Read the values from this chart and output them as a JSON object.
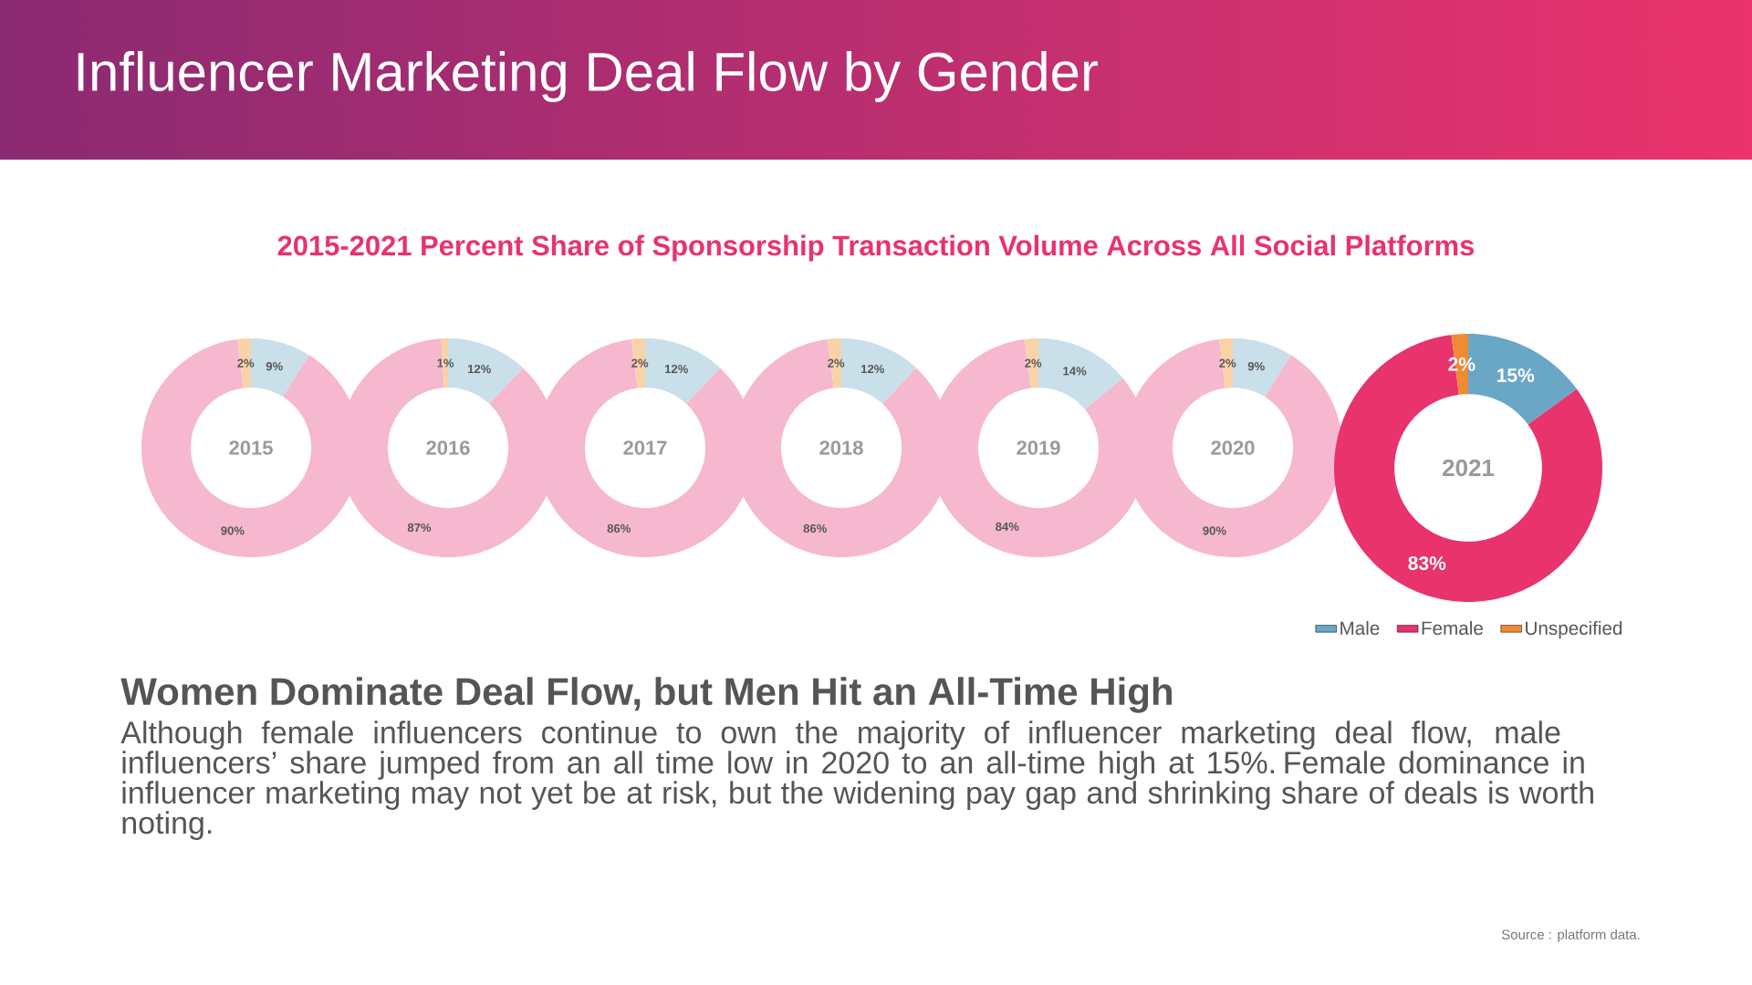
{
  "chart_data": [
    {
      "type": "other",
      "title": "Influencer Marketing Deal Flow by Gender",
      "subtitle": "2015-2021 Percent Share of Sponsorship Transaction Volume Across All Social Platforms",
      "annotations": [
        "Women Dominate Deal Flow, but Men Hit an All-Time High",
        "Although female influencers continue to own the majority of influencer marketing deal flow, male influencers’ share jumped from an all time low in 2020 to an all-time high at 15%. Female dominance in influencer marketing may not yet be at risk, but the widening pay gap and shrinking share of deals is worth noting.",
        "Source : platform data."
      ]
    },
    {
      "type": "donut",
      "title": "2015",
      "values": [
        9,
        90,
        2
      ],
      "value_labels": [
        "9%",
        "90%",
        "2%"
      ],
      "colors": [
        "#c9dfe9",
        "#f5b8cf",
        "#f9d3a8"
      ]
    },
    {
      "type": "donut",
      "title": "2016",
      "values": [
        12,
        87,
        1
      ],
      "value_labels": [
        "12%",
        "87%",
        "1%"
      ],
      "colors": [
        "#c9dfe9",
        "#f5b8cf",
        "#f9d3a8"
      ]
    },
    {
      "type": "donut",
      "title": "2017",
      "values": [
        12,
        86,
        2
      ],
      "value_labels": [
        "12%",
        "86%",
        "2%"
      ],
      "colors": [
        "#c9dfe9",
        "#f5b8cf",
        "#f9d3a8"
      ]
    },
    {
      "type": "donut",
      "title": "2018",
      "values": [
        12,
        86,
        2
      ],
      "value_labels": [
        "12%",
        "86%",
        "2%"
      ],
      "colors": [
        "#c9dfe9",
        "#f5b8cf",
        "#f9d3a8"
      ]
    },
    {
      "type": "donut",
      "title": "2019",
      "values": [
        14,
        84,
        2
      ],
      "value_labels": [
        "14%",
        "84%",
        "2%"
      ],
      "colors": [
        "#c9dfe9",
        "#f5b8cf",
        "#f9d3a8"
      ]
    },
    {
      "type": "donut",
      "title": "2020",
      "values": [
        9,
        90,
        2
      ],
      "value_labels": [
        "9%",
        "90%",
        "2%"
      ],
      "colors": [
        "#c9dfe9",
        "#f5b8cf",
        "#f9d3a8"
      ]
    },
    {
      "type": "donut",
      "title": "2021",
      "categories": [
        "Male",
        "Female",
        "Unspecified"
      ],
      "values": [
        15,
        83,
        2
      ],
      "value_labels": [
        "15%",
        "83%",
        "2%"
      ],
      "colors": [
        "#6aa7c6",
        "#e8336d",
        "#f08a33"
      ],
      "legend": "bottom right"
    }
  ]
}
